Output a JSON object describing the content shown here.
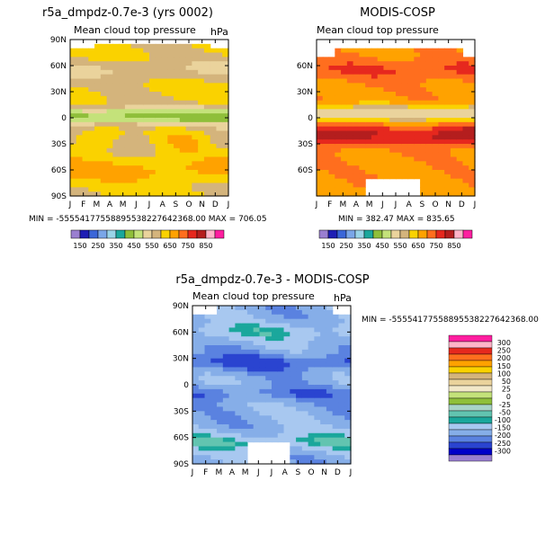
{
  "colors": {
    "abs": [
      "#9a7fd0",
      "#1e1eb4",
      "#3a66d8",
      "#7aa6e8",
      "#9ad4e8",
      "#1aa79c",
      "#8fbf3a",
      "#c4e27a",
      "#ead39c",
      "#d4b47c",
      "#fad200",
      "#ffa200",
      "#ff6e1e",
      "#e6281e",
      "#b41e1e",
      "#ffb4c8",
      "#ff1ea0"
    ],
    "diff": [
      "#9a7fd0",
      "#0000c8",
      "#2a44d0",
      "#5a82e0",
      "#86aee8",
      "#a8c8f0",
      "#1aa79c",
      "#62c4b0",
      "#a8d4c8",
      "#8fbf3a",
      "#c4e27a",
      "#f2e8c8",
      "#ead39c",
      "#d4b47c",
      "#fad200",
      "#ffa200",
      "#ff6e1e",
      "#e6281e",
      "#ffb4c8",
      "#ff1ea0"
    ]
  },
  "chart_data": [
    {
      "type": "heatmap",
      "title": "r5a_dmpdz-0.7e-3 (yrs 0002)",
      "subtitle": "Mean cloud top pressure",
      "units": "hPa",
      "x": [
        "J",
        "F",
        "M",
        "A",
        "M",
        "J",
        "J",
        "A",
        "S",
        "O",
        "N",
        "D",
        "J"
      ],
      "y_ticks": [
        "90N",
        "60N",
        "30N",
        "0",
        "30S",
        "60S",
        "90S"
      ],
      "stats": "MIN = -55554177558895538227642368.00  MAX = 706.05",
      "field": "model",
      "colorbar": {
        "orientation": "horizontal",
        "labels": [
          "150",
          "250",
          "350",
          "450",
          "550",
          "650",
          "750",
          "850"
        ],
        "levels": [
          100,
          150,
          200,
          250,
          300,
          350,
          400,
          450,
          500,
          550,
          600,
          650,
          700,
          750,
          800,
          850
        ]
      }
    },
    {
      "type": "heatmap",
      "title": "MODIS-COSP",
      "subtitle": "Mean cloud top pressure",
      "units": "",
      "x": [
        "J",
        "F",
        "M",
        "A",
        "M",
        "J",
        "J",
        "A",
        "S",
        "O",
        "N",
        "D",
        "J"
      ],
      "y_ticks": [
        "",
        "60N",
        "30N",
        "0",
        "30S",
        "60S",
        ""
      ],
      "stats": "MIN = 382.47  MAX = 835.65",
      "field": "obs",
      "colorbar": {
        "orientation": "horizontal",
        "labels": [
          "150",
          "250",
          "350",
          "450",
          "550",
          "650",
          "750",
          "850"
        ],
        "levels": [
          100,
          150,
          200,
          250,
          300,
          350,
          400,
          450,
          500,
          550,
          600,
          650,
          700,
          750,
          800,
          850
        ]
      }
    },
    {
      "type": "heatmap",
      "title": "r5a_dmpdz-0.7e-3 - MODIS-COSP",
      "subtitle": "Mean cloud top pressure",
      "units": "hPa",
      "x": [
        "J",
        "F",
        "M",
        "A",
        "M",
        "J",
        "J",
        "A",
        "S",
        "O",
        "N",
        "D",
        "J"
      ],
      "y_ticks": [
        "90N",
        "60N",
        "30N",
        "0",
        "30S",
        "60S",
        "90S"
      ],
      "stats": "MIN = -55554177558895538227642368.00",
      "field": "diff",
      "colorbar": {
        "orientation": "vertical",
        "labels": [
          "300",
          "250",
          "200",
          "150",
          "100",
          "50",
          "25",
          "0",
          "-25",
          "-50",
          "-100",
          "-150",
          "-200",
          "-250",
          "-300"
        ],
        "levels": [
          -300,
          -250,
          -200,
          -150,
          -100,
          -50,
          -25,
          0,
          25,
          50,
          100,
          150,
          200,
          250,
          300
        ]
      }
    }
  ]
}
